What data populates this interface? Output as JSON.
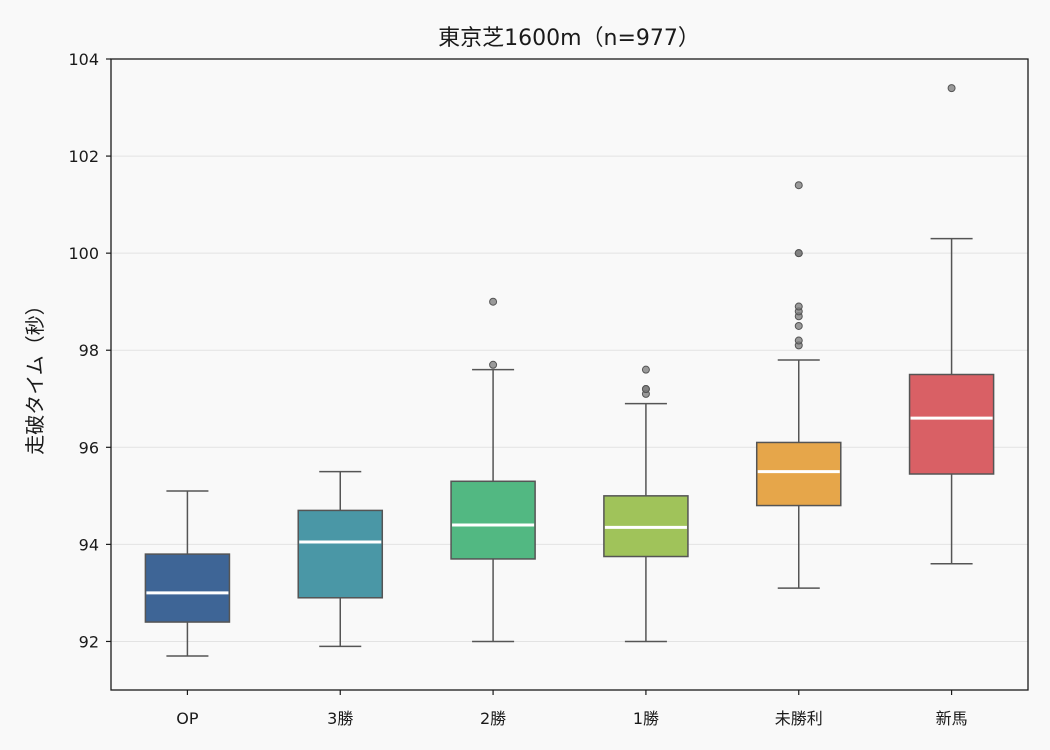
{
  "chart_data": {
    "type": "box",
    "title": "東京芝1600m（n=977）",
    "xlabel": "",
    "ylabel": "走破タイム（秒）",
    "ylim": [
      91.0,
      104.0
    ],
    "yticks": [
      92,
      94,
      96,
      98,
      100,
      102,
      104
    ],
    "grid": true,
    "categories": [
      "OP",
      "3勝",
      "2勝",
      "1勝",
      "未勝利",
      "新馬"
    ],
    "boxes": [
      {
        "category": "OP",
        "whisker_low": 91.7,
        "q1": 92.4,
        "median": 93.0,
        "q3": 93.8,
        "whisker_high": 95.1,
        "outliers": [],
        "color": "#3e6596"
      },
      {
        "category": "3勝",
        "whisker_low": 91.9,
        "q1": 92.9,
        "median": 94.05,
        "q3": 94.7,
        "whisker_high": 95.5,
        "outliers": [],
        "color": "#4a97a6"
      },
      {
        "category": "2勝",
        "whisker_low": 92.0,
        "q1": 93.7,
        "median": 94.4,
        "q3": 95.3,
        "whisker_high": 97.6,
        "outliers": [
          97.7,
          99.0
        ],
        "color": "#52b882"
      },
      {
        "category": "1勝",
        "whisker_low": 92.0,
        "q1": 93.75,
        "median": 94.35,
        "q3": 95.0,
        "whisker_high": 96.9,
        "outliers": [
          97.1,
          97.2,
          97.2,
          97.6
        ],
        "color": "#a0c35a"
      },
      {
        "category": "未勝利",
        "whisker_low": 93.1,
        "q1": 94.8,
        "median": 95.5,
        "q3": 96.1,
        "whisker_high": 97.8,
        "outliers": [
          98.1,
          98.2,
          98.5,
          98.7,
          98.8,
          98.9,
          100.0,
          100.0,
          101.4
        ],
        "color": "#e6a64a"
      },
      {
        "category": "新馬",
        "whisker_low": 93.6,
        "q1": 95.45,
        "median": 96.6,
        "q3": 97.5,
        "whisker_high": 100.3,
        "outliers": [
          103.4
        ],
        "color": "#d96065"
      }
    ]
  }
}
